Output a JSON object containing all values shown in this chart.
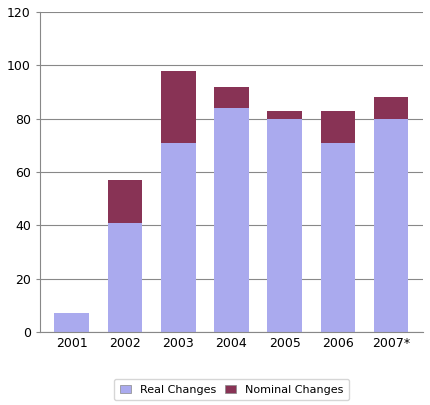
{
  "categories": [
    "2001",
    "2002",
    "2003",
    "2004",
    "2005",
    "2006",
    "2007*"
  ],
  "real_values": [
    7,
    41,
    71,
    84,
    80,
    71,
    80
  ],
  "nominal_values": [
    0,
    16,
    27,
    8,
    3,
    12,
    8
  ],
  "real_color": "#aaaaee",
  "nominal_color": "#883355",
  "ylim": [
    0,
    120
  ],
  "yticks": [
    0,
    20,
    40,
    60,
    80,
    100,
    120
  ],
  "legend_real": "Real Changes",
  "legend_nominal": "Nominal Changes",
  "bar_width": 0.65,
  "background_color": "#ffffff",
  "grid_color": "#888888"
}
